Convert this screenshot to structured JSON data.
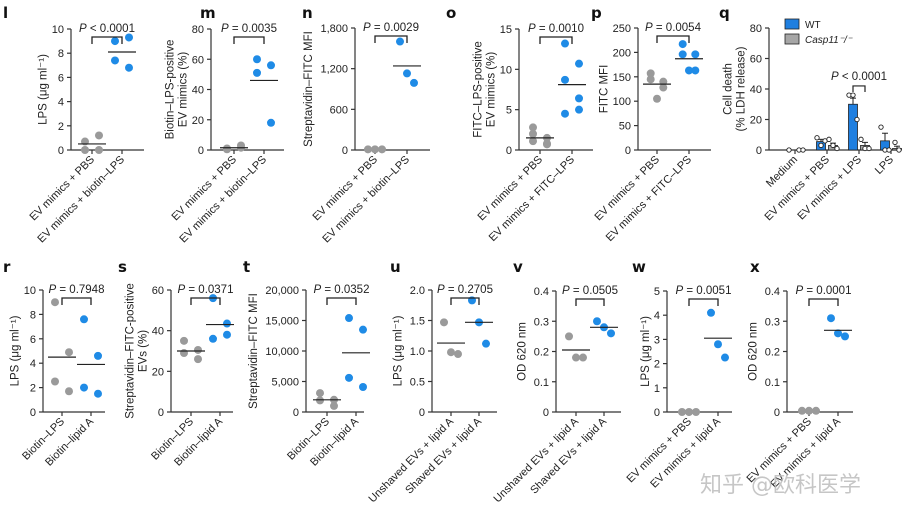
{
  "colors": {
    "gray": "#9a9a9a",
    "blue": "#1f8be6",
    "bar_blue": "#1f7fe0",
    "bar_gray": "#a6a6a6",
    "axis": "#333333"
  },
  "watermark": "知乎 @欧科医学",
  "chart_data": [
    {
      "panel": "l",
      "type": "scatter",
      "ylabel": "LPS (μg ml⁻¹)",
      "ylim": [
        0,
        10
      ],
      "yticks": [
        0,
        2,
        4,
        6,
        8,
        10
      ],
      "ytick_labels": [
        "0",
        "2",
        "4",
        "6",
        "8",
        "10"
      ],
      "categories": [
        "EV mimics + PBS",
        "EV mimics + biotin–LPS"
      ],
      "groups": [
        {
          "color": "gray",
          "values": [
            0.0,
            1.2,
            0.7,
            0.0
          ],
          "mean": 0.5
        },
        {
          "color": "blue",
          "values": [
            9.0,
            9.3,
            7.4,
            6.8
          ],
          "mean": 8.1
        }
      ],
      "pvalue": "P < 0.0001"
    },
    {
      "panel": "m",
      "type": "scatter",
      "ylabel": [
        "Biotin–LPS-positive",
        "EV mimics (%)"
      ],
      "ylim": [
        0,
        80
      ],
      "yticks": [
        0,
        20,
        40,
        60,
        80
      ],
      "ytick_labels": [
        "0",
        "20",
        "40",
        "60",
        "80"
      ],
      "categories": [
        "EV mimics + PBS",
        "EV mimics + biotin–LPS"
      ],
      "groups": [
        {
          "color": "gray",
          "values": [
            1.0,
            3.0,
            0.5,
            1.5
          ],
          "mean": 1.5
        },
        {
          "color": "blue",
          "values": [
            60,
            56,
            51,
            18
          ],
          "mean": 46
        }
      ],
      "pvalue": "P = 0.0035"
    },
    {
      "panel": "n",
      "type": "scatter",
      "ylabel": "Streptavidin–FITC MFI",
      "ylim": [
        0,
        1800
      ],
      "yticks": [
        0,
        600,
        1200,
        1800
      ],
      "ytick_labels": [
        "0",
        "600",
        "1,200",
        "1,800"
      ],
      "categories": [
        "EV mimics + PBS",
        "EV mimics + biotin–LPS"
      ],
      "groups": [
        {
          "color": "gray",
          "values": [
            10,
            10,
            10
          ],
          "mean": null
        },
        {
          "color": "blue",
          "values": [
            1600,
            1130,
            990
          ],
          "mean": 1240
        }
      ],
      "pvalue": "P = 0.0029"
    },
    {
      "panel": "o",
      "type": "scatter",
      "ylabel": [
        "FITC–LPS-positive",
        "EV mimics (%)"
      ],
      "ylim": [
        0,
        15
      ],
      "yticks": [
        0,
        5,
        10,
        15
      ],
      "ytick_labels": [
        "0",
        "5",
        "10",
        "15"
      ],
      "categories": [
        "EV mimics + PBS",
        "EV mimics + FITC–LPS"
      ],
      "groups": [
        {
          "color": "gray",
          "values": [
            2.8,
            1.5,
            2.0,
            0.7,
            1.1,
            0.8
          ],
          "mean": 1.5
        },
        {
          "color": "blue",
          "values": [
            13.2,
            10.7,
            8.7,
            6.4,
            4.5,
            5.0
          ],
          "mean": 8.1
        }
      ],
      "pvalue": "P = 0.0010"
    },
    {
      "panel": "p",
      "type": "scatter",
      "ylabel": "FITC MFI",
      "ylim": [
        0,
        250
      ],
      "yticks": [
        0,
        50,
        100,
        150,
        200,
        250
      ],
      "ytick_labels": [
        "0",
        "50",
        "100",
        "150",
        "200",
        "250"
      ],
      "categories": [
        "EV mimics + PBS",
        "EV mimics + FITC–LPS"
      ],
      "groups": [
        {
          "color": "gray",
          "values": [
            157,
            140,
            145,
            128,
            105
          ],
          "mean": 135
        },
        {
          "color": "blue",
          "values": [
            217,
            196,
            196,
            163,
            163
          ],
          "mean": 187
        }
      ],
      "pvalue": "P = 0.0054"
    },
    {
      "panel": "q",
      "type": "bar",
      "ylabel": [
        "Cell death",
        "(% LDH release)"
      ],
      "ylim": [
        0,
        80
      ],
      "yticks": [
        0,
        20,
        40,
        60,
        80
      ],
      "ytick_labels": [
        "0",
        "20",
        "40",
        "60",
        "80"
      ],
      "categories": [
        "Medium",
        "EV mimics + PBS",
        "EV mimics + LPS",
        "LPS"
      ],
      "legend": [
        {
          "label": "WT",
          "color": "bar_blue"
        },
        {
          "label": "Casp11⁻/⁻",
          "color": "bar_gray",
          "italic": true
        }
      ],
      "series": [
        {
          "name": "WT",
          "color": "bar_blue",
          "values": [
            0,
            5.5,
            30,
            6
          ],
          "errors": [
            0,
            1.5,
            4,
            5
          ],
          "points": [
            [
              0
            ],
            [
              8,
              3,
              6
            ],
            [
              36,
              36,
              20
            ],
            [
              15,
              0,
              0
            ]
          ]
        },
        {
          "name": "Casp11⁻/⁻",
          "color": "bar_gray",
          "values": [
            0,
            3,
            3,
            1
          ],
          "errors": [
            0,
            1.5,
            2,
            1.5
          ],
          "points": [
            [
              0,
              0
            ],
            [
              7,
              3,
              1
            ],
            [
              7,
              1,
              1
            ],
            [
              5,
              0
            ]
          ]
        }
      ],
      "pvalue": "P < 0.0001",
      "pvalue_category": 2
    },
    {
      "panel": "r",
      "type": "scatter",
      "ylabel": "LPS (μg ml⁻¹)",
      "ylim": [
        0,
        10
      ],
      "yticks": [
        0,
        2,
        4,
        6,
        8,
        10
      ],
      "ytick_labels": [
        "0",
        "2",
        "4",
        "6",
        "8",
        "10"
      ],
      "categories": [
        "Biotin–LPS",
        "Biotin–lipid A"
      ],
      "groups": [
        {
          "color": "gray",
          "values": [
            9.0,
            4.9,
            2.5,
            1.7
          ],
          "mean": 4.5
        },
        {
          "color": "blue",
          "values": [
            7.6,
            4.6,
            2.0,
            1.5
          ],
          "mean": 3.9
        }
      ],
      "pvalue": "P = 0.7948"
    },
    {
      "panel": "s",
      "type": "scatter",
      "ylabel": [
        "Streptavidin–FITC-positive",
        "EVs (%)"
      ],
      "ylim": [
        0,
        60
      ],
      "yticks": [
        0,
        20,
        40,
        60
      ],
      "ytick_labels": [
        "0",
        "20",
        "40",
        "60"
      ],
      "categories": [
        "Biotin–LPS",
        "Biotin–lipid A"
      ],
      "groups": [
        {
          "color": "gray",
          "values": [
            35,
            30.5,
            29,
            26
          ],
          "mean": 30
        },
        {
          "color": "blue",
          "values": [
            56,
            43.5,
            36,
            38
          ],
          "mean": 43
        }
      ],
      "pvalue": "P = 0.0371"
    },
    {
      "panel": "t",
      "type": "scatter",
      "ylabel": "Streptavidin–FITC MFI",
      "ylim": [
        0,
        20000
      ],
      "yticks": [
        0,
        5000,
        10000,
        15000,
        20000
      ],
      "ytick_labels": [
        "0",
        "5,000",
        "10,000",
        "15,000",
        "20,000"
      ],
      "categories": [
        "Biotin–LPS",
        "Biotin–lipid A"
      ],
      "groups": [
        {
          "color": "gray",
          "values": [
            3100,
            2000,
            1900,
            1000
          ],
          "mean": 2000
        },
        {
          "color": "blue",
          "values": [
            15400,
            13500,
            5600,
            4100
          ],
          "mean": 9700
        }
      ],
      "pvalue": "P = 0.0352"
    },
    {
      "panel": "u",
      "type": "scatter",
      "ylabel": "LPS (μg ml⁻¹)",
      "ylim": [
        0,
        2.0
      ],
      "yticks": [
        0,
        0.5,
        1.0,
        1.5,
        2.0
      ],
      "ytick_labels": [
        "0",
        "0.5",
        "1.0",
        "1.5",
        "2.0"
      ],
      "categories": [
        "Unshaved EVs + lipid A",
        "Shaved EVs + lipid A"
      ],
      "groups": [
        {
          "color": "gray",
          "values": [
            1.47,
            0.98,
            0.95
          ],
          "mean": 1.13
        },
        {
          "color": "blue",
          "values": [
            1.83,
            1.47,
            1.12
          ],
          "mean": 1.47
        }
      ],
      "pvalue": "P = 0.2705"
    },
    {
      "panel": "v",
      "type": "scatter",
      "ylabel": "OD 620 nm",
      "ylim": [
        0,
        0.4
      ],
      "yticks": [
        0,
        0.1,
        0.2,
        0.3,
        0.4
      ],
      "ytick_labels": [
        "0",
        "0.1",
        "0.2",
        "0.3",
        "0.4"
      ],
      "categories": [
        "Unshaved EVs + lipid A",
        "Shaved EVs + lipid A"
      ],
      "groups": [
        {
          "color": "gray",
          "values": [
            0.25,
            0.18,
            0.18
          ],
          "mean": 0.205
        },
        {
          "color": "blue",
          "values": [
            0.3,
            0.28,
            0.26
          ],
          "mean": 0.28
        }
      ],
      "pvalue": "P = 0.0505"
    },
    {
      "panel": "w",
      "type": "scatter",
      "ylabel": "LPS (μg ml⁻¹)",
      "ylim": [
        0,
        5
      ],
      "yticks": [
        0,
        1,
        2,
        3,
        4,
        5
      ],
      "ytick_labels": [
        "0",
        "1",
        "2",
        "3",
        "4",
        "5"
      ],
      "categories": [
        "EV mimics + PBS",
        "EV mimics + lipid A"
      ],
      "groups": [
        {
          "color": "gray",
          "values": [
            0,
            0,
            0
          ],
          "mean": null
        },
        {
          "color": "blue",
          "values": [
            4.1,
            2.8,
            2.25
          ],
          "mean": 3.05
        }
      ],
      "pvalue": "P = 0.0051"
    },
    {
      "panel": "x",
      "type": "scatter",
      "ylabel": "OD 620 nm",
      "ylim": [
        0,
        0.4
      ],
      "yticks": [
        0,
        0.1,
        0.2,
        0.3,
        0.4
      ],
      "ytick_labels": [
        "0",
        "0.1",
        "0.2",
        "0.3",
        "0.4"
      ],
      "categories": [
        "EV mimics + PBS",
        "EV mimics + lipid A"
      ],
      "groups": [
        {
          "color": "gray",
          "values": [
            0.004,
            0.004,
            0.004
          ],
          "mean": null
        },
        {
          "color": "blue",
          "values": [
            0.31,
            0.26,
            0.25
          ],
          "mean": 0.27
        }
      ],
      "pvalue": "P = 0.0001"
    }
  ]
}
